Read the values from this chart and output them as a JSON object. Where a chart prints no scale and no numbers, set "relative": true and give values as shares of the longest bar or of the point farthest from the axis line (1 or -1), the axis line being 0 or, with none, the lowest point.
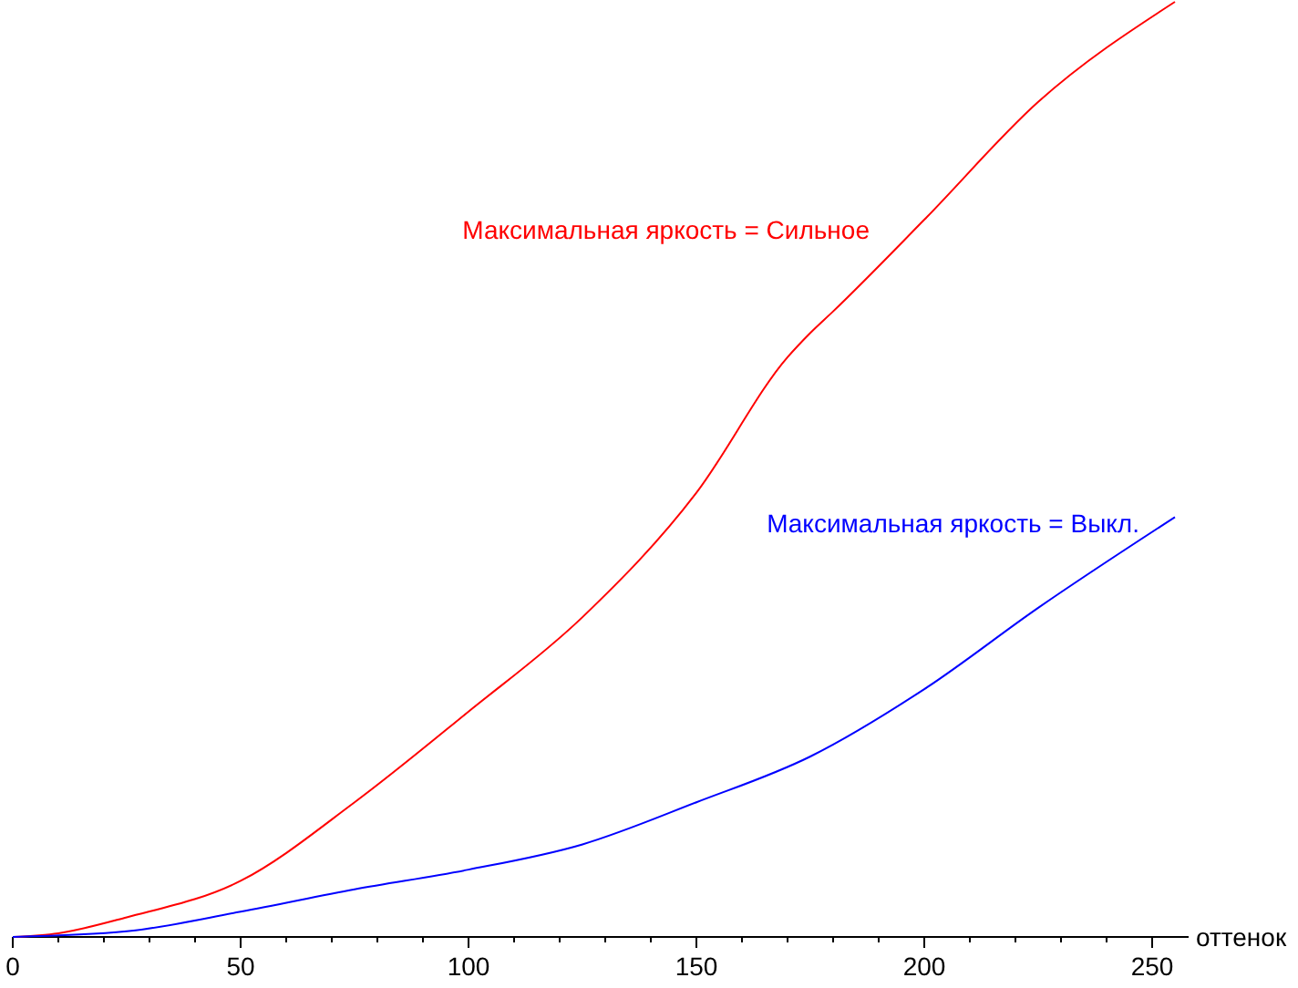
{
  "chart_data": {
    "type": "line",
    "relative": true,
    "xlabel": "оттенок",
    "xlim": [
      0,
      258
    ],
    "xticks": [
      0,
      {
        "value": 10,
        "label": null
      },
      {
        "value": 20,
        "label": null
      },
      {
        "value": 30,
        "label": null
      },
      {
        "value": 40,
        "label": null
      },
      50,
      {
        "value": 60,
        "label": null
      },
      {
        "value": 70,
        "label": null
      },
      {
        "value": 80,
        "label": null
      },
      {
        "value": 90,
        "label": null
      },
      100,
      {
        "value": 110,
        "label": null
      },
      {
        "value": 120,
        "label": null
      },
      {
        "value": 130,
        "label": null
      },
      {
        "value": 140,
        "label": null
      },
      150,
      {
        "value": 160,
        "label": null
      },
      {
        "value": 170,
        "label": null
      },
      {
        "value": 180,
        "label": null
      },
      {
        "value": 190,
        "label": null
      },
      200,
      {
        "value": 210,
        "label": null
      },
      {
        "value": 220,
        "label": null
      },
      {
        "value": 230,
        "label": null
      },
      {
        "value": 240,
        "label": null
      },
      250
    ],
    "grid": false,
    "line_style": "solid",
    "series": [
      {
        "name": "Максимальная яркость = Сильное",
        "color": "#ff0000",
        "x": [
          0,
          10,
          25,
          50,
          75,
          100,
          125,
          150,
          170,
          175,
          180,
          200,
          225,
          255
        ],
        "values": [
          0,
          0.004,
          0.021,
          0.06,
          0.144,
          0.241,
          0.342,
          0.475,
          0.62,
          0.646,
          0.669,
          0.767,
          0.893,
          1
        ]
      },
      {
        "name": "Максимальная яркость = Выкл.",
        "color": "#0000ff",
        "x": [
          0,
          25,
          50,
          75,
          100,
          125,
          150,
          175,
          200,
          225,
          255
        ],
        "values": [
          0,
          0.006,
          0.027,
          0.051,
          0.072,
          0.099,
          0.144,
          0.193,
          0.265,
          0.352,
          0.449
        ]
      }
    ]
  }
}
